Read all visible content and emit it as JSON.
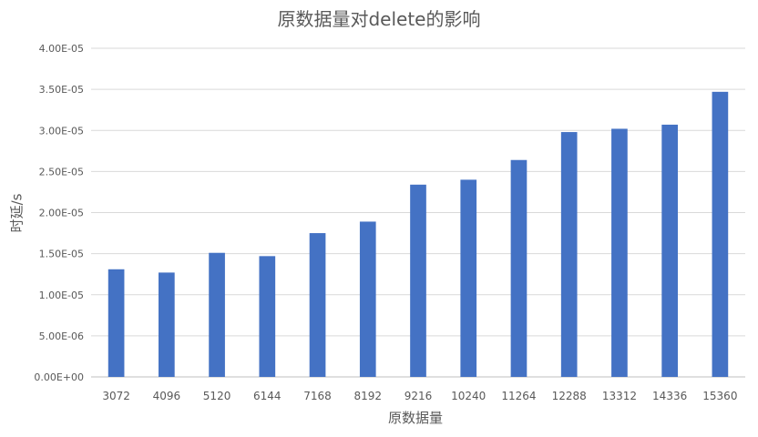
{
  "chart_data": {
    "type": "bar",
    "title": "原数据量对delete的影响",
    "xlabel": "原数据量",
    "ylabel": "时延/s",
    "categories": [
      "3072",
      "4096",
      "5120",
      "6144",
      "7168",
      "8192",
      "9216",
      "10240",
      "11264",
      "12288",
      "13312",
      "14336",
      "15360"
    ],
    "series": [
      {
        "values": [
          1.31e-05,
          1.27e-05,
          1.51e-05,
          1.47e-05,
          1.75e-05,
          1.89e-05,
          2.34e-05,
          2.4e-05,
          2.64e-05,
          2.98e-05,
          3.02e-05,
          3.07e-05,
          3.47e-05
        ],
        "color": "#4472C4"
      }
    ],
    "ylim": [
      0,
      4e-05
    ],
    "yticks": [
      "0.00E+00",
      "5.00E-06",
      "1.00E-05",
      "1.50E-05",
      "2.00E-05",
      "2.50E-05",
      "3.00E-05",
      "3.50E-05",
      "4.00E-05"
    ],
    "grid": true,
    "legend": "none"
  }
}
